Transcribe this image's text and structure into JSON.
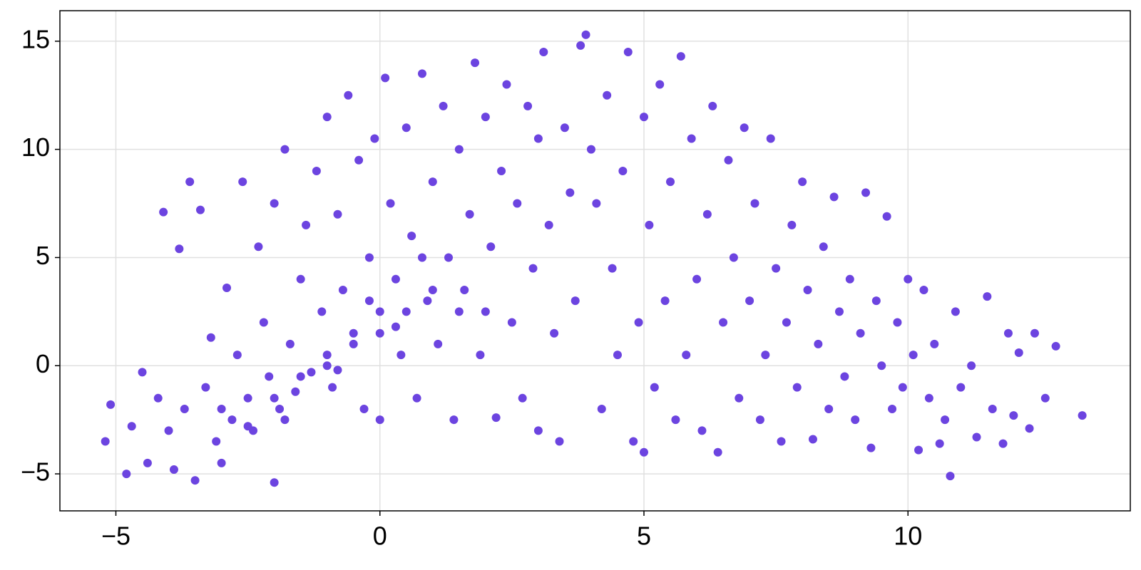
{
  "chart_data": {
    "type": "scatter",
    "color": "#6c44e0",
    "grid": true,
    "xlim": [
      -6.06,
      14.21
    ],
    "ylim": [
      -6.71,
      16.41
    ],
    "xticks": [
      {
        "value": -5,
        "label": "−5"
      },
      0,
      5,
      10
    ],
    "yticks": [
      {
        "value": -5,
        "label": "−5"
      },
      0,
      5,
      10,
      15
    ],
    "x": [
      -5.2,
      -5.1,
      -4.8,
      -4.7,
      -4.5,
      -4.4,
      -4.2,
      -4.1,
      -4,
      -3.9,
      -3.8,
      -3.7,
      -3.6,
      -3.5,
      -3.4,
      -3.3,
      -3.2,
      -3.1,
      -3,
      -2.9,
      -2.8,
      -2.7,
      -2.6,
      -2.5,
      -2.4,
      -2.3,
      -2.2,
      -2.1,
      -2,
      -2,
      -1.9,
      -1.8,
      -1.7,
      -1.6,
      -1.5,
      -1.4,
      -1.3,
      -1.2,
      -1.1,
      -1,
      -1,
      -0.9,
      -0.8,
      -0.7,
      -0.6,
      -0.5,
      -0.4,
      -0.3,
      -0.2,
      -0.1,
      0,
      0,
      0.1,
      0.2,
      0.3,
      0.4,
      0.5,
      0.6,
      0.7,
      0.8,
      0.9,
      1,
      1.1,
      1.2,
      1.3,
      1.4,
      1.5,
      1.6,
      1.7,
      1.8,
      1.9,
      2,
      2.1,
      2.2,
      2.3,
      2.4,
      2.5,
      2.6,
      2.7,
      2.8,
      2.9,
      3,
      3,
      3.1,
      3.2,
      3.3,
      3.4,
      3.5,
      3.6,
      3.7,
      3.8,
      3.9,
      4,
      4.1,
      4.2,
      4.3,
      4.4,
      4.5,
      4.6,
      4.7,
      4.8,
      4.9,
      5,
      5,
      5.1,
      5.2,
      5.3,
      5.4,
      5.5,
      5.6,
      5.7,
      5.8,
      5.9,
      6,
      6.1,
      6.2,
      6.3,
      6.4,
      6.5,
      6.6,
      6.7,
      6.8,
      6.9,
      7,
      7.1,
      7.2,
      7.3,
      7.4,
      7.5,
      7.6,
      7.7,
      7.8,
      7.9,
      8,
      8.1,
      8.2,
      8.3,
      8.4,
      8.5,
      8.6,
      8.7,
      8.8,
      8.9,
      9,
      9.1,
      9.2,
      9.3,
      9.4,
      9.5,
      9.6,
      9.7,
      9.8,
      9.9,
      10,
      10.1,
      10.2,
      10.3,
      10.4,
      10.5,
      10.6,
      10.7,
      10.8,
      10.9,
      11,
      11.2,
      11.3,
      11.5,
      11.6,
      11.8,
      11.9,
      12,
      12.1,
      12.3,
      12.4,
      12.6,
      12.8,
      13.3,
      -2.5,
      -2,
      -1.5,
      -1,
      -0.5,
      0,
      0.5,
      1,
      -3,
      -1.8,
      -0.8,
      0.3,
      1.5,
      0.8,
      -0.2,
      2
    ],
    "values": [
      -3.5,
      -1.8,
      -5,
      -2.8,
      -0.3,
      -4.5,
      -1.5,
      7.1,
      -3,
      -4.8,
      5.4,
      -2,
      8.5,
      -5.3,
      7.2,
      -1,
      1.3,
      -3.5,
      -4.5,
      3.6,
      -2.5,
      0.5,
      8.5,
      -1.5,
      -3,
      5.5,
      2,
      -0.5,
      -5.4,
      7.5,
      -2,
      10,
      1,
      -1.2,
      4,
      6.5,
      -0.3,
      9,
      2.5,
      0.5,
      11.5,
      -1,
      7,
      3.5,
      12.5,
      1.5,
      9.5,
      -2,
      5,
      10.5,
      2.5,
      -2.5,
      13.3,
      7.5,
      4,
      0.5,
      11,
      6,
      -1.5,
      13.5,
      3,
      8.5,
      1,
      12,
      5,
      -2.5,
      10,
      3.5,
      7,
      14,
      0.5,
      11.5,
      5.5,
      -2.4,
      9,
      13,
      2,
      7.5,
      -1.5,
      12,
      4.5,
      -3,
      10.5,
      14.5,
      6.5,
      1.5,
      -3.5,
      11,
      8,
      3,
      14.8,
      15.3,
      10,
      7.5,
      -2,
      12.5,
      4.5,
      0.5,
      9,
      14.5,
      -3.5,
      2,
      11.5,
      -4,
      6.5,
      -1,
      13,
      3,
      8.5,
      -2.5,
      14.3,
      0.5,
      10.5,
      4,
      -3,
      7,
      12,
      -4,
      2,
      9.5,
      5,
      -1.5,
      11,
      3,
      7.5,
      -2.5,
      0.5,
      10.5,
      4.5,
      -3.5,
      2,
      6.5,
      -1,
      8.5,
      3.5,
      -3.4,
      1,
      5.5,
      -2,
      7.8,
      2.5,
      -0.5,
      4,
      -2.5,
      1.5,
      8,
      -3.8,
      3,
      0,
      6.9,
      -2,
      2,
      -1,
      4,
      0.5,
      -3.9,
      3.5,
      -1.5,
      1,
      -3.6,
      -2.5,
      -5.1,
      2.5,
      -1,
      0,
      -3.3,
      3.2,
      -2,
      -3.6,
      1.5,
      -2.3,
      0.6,
      -2.9,
      1.5,
      -1.5,
      0.9,
      -2.3,
      -2.8,
      -1.5,
      -0.5,
      0,
      1,
      1.5,
      2.5,
      3.5,
      -2,
      -2.5,
      -0.2,
      1.8,
      2.5,
      5,
      3,
      2.5
    ]
  }
}
